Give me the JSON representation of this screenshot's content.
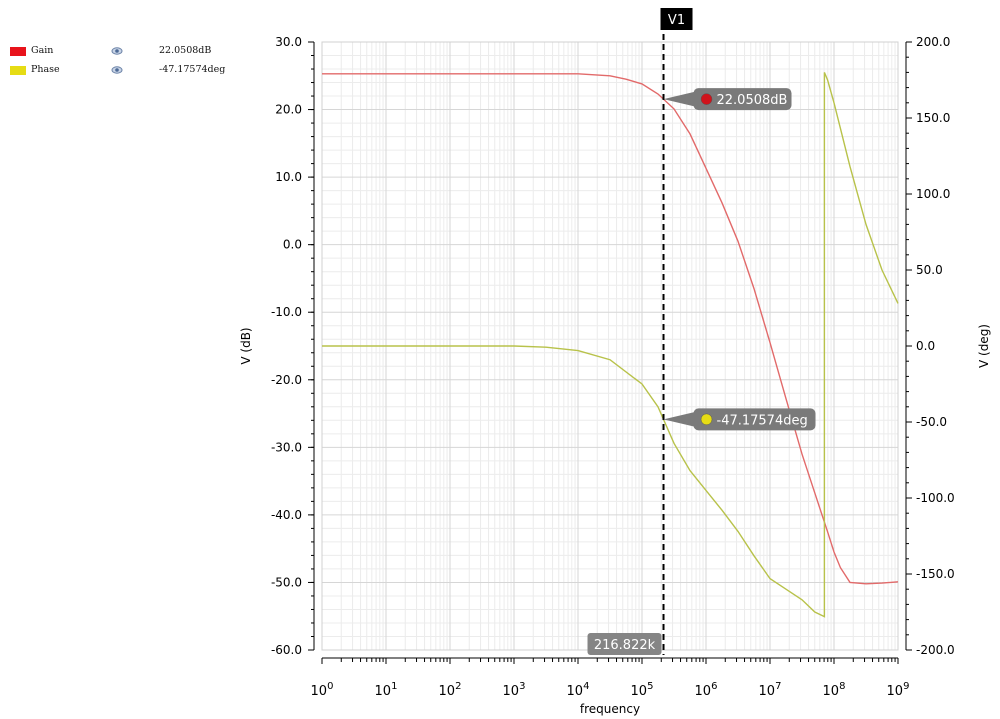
{
  "legend": [
    {
      "name": "Gain",
      "value": "22.0508dB",
      "color": "#e8131b"
    },
    {
      "name": "Phase",
      "value": "-47.17574deg",
      "color": "#e6dc14"
    }
  ],
  "chart_data": {
    "type": "line",
    "xlabel": "frequency",
    "ylabel_left": "V (dB)",
    "ylabel_right": "V (deg)",
    "x_scale": "log",
    "xlim": [
      1,
      1000000000
    ],
    "x_ticks": [
      {
        "base": "10",
        "exp": "0",
        "value": 1
      },
      {
        "base": "10",
        "exp": "1",
        "value": 10
      },
      {
        "base": "10",
        "exp": "2",
        "value": 100
      },
      {
        "base": "10",
        "exp": "3",
        "value": 1000
      },
      {
        "base": "10",
        "exp": "4",
        "value": 10000
      },
      {
        "base": "10",
        "exp": "5",
        "value": 100000
      },
      {
        "base": "10",
        "exp": "6",
        "value": 1000000
      },
      {
        "base": "10",
        "exp": "7",
        "value": 10000000
      },
      {
        "base": "10",
        "exp": "8",
        "value": 100000000
      },
      {
        "base": "10",
        "exp": "9",
        "value": 1000000000
      }
    ],
    "ylim_left": [
      -60,
      30
    ],
    "ylim_right": [
      -200,
      200
    ],
    "y_ticks_left": [
      "30.0",
      "20.0",
      "10.0",
      "0.0",
      "-10.0",
      "-20.0",
      "-30.0",
      "-40.0",
      "-50.0",
      "-60.0"
    ],
    "y_ticks_right": [
      "200.0",
      "150.0",
      "100.0",
      "50.0",
      "0.0",
      "-50.0",
      "-100.0",
      "-150.0",
      "-200.0"
    ],
    "grid": true,
    "series": [
      {
        "name": "Gain",
        "axis": "left",
        "color": "#e26a6a",
        "x": [
          1,
          10,
          100,
          1000,
          10000,
          31623,
          56234,
          100000,
          177828,
          316228,
          562341,
          1000000,
          1778279,
          3162278,
          5623413,
          10000000,
          17782794,
          31622777,
          56234133,
          79432823,
          100000000,
          125892541,
          177827941,
          316227766,
          562341325,
          1000000000
        ],
        "values": [
          25.3,
          25.3,
          25.3,
          25.3,
          25.3,
          25.0,
          24.5,
          23.8,
          22.3,
          20.1,
          16.4,
          11.3,
          6.2,
          0.5,
          -6.5,
          -14.5,
          -22.8,
          -31.0,
          -38.2,
          -42.5,
          -45.5,
          -47.8,
          -50.0,
          -50.2,
          -50.1,
          -49.9
        ]
      },
      {
        "name": "Phase",
        "axis": "right",
        "color": "#b8c24a",
        "x": [
          1,
          10,
          100,
          1000,
          3162,
          10000,
          31623,
          100000,
          177828,
          316228,
          562341,
          1000000,
          1778279,
          3162278,
          5623413,
          10000000,
          17782794,
          31622777,
          50118723,
          70794578,
          70794578,
          79432823,
          100000000,
          177827941,
          316227766,
          562341325,
          1000000000
        ],
        "values": [
          0,
          0,
          0,
          0,
          -0.8,
          -3,
          -9,
          -25,
          -40,
          -64,
          -82,
          -95,
          -108,
          -122,
          -138,
          -153,
          -160,
          -167,
          -175,
          -178,
          180,
          175,
          160,
          118,
          80,
          50,
          28
        ]
      }
    ],
    "cursor": {
      "label": "V1",
      "x_value": 216822,
      "x_label": "216.822k"
    },
    "markers": [
      {
        "series": "Gain",
        "label": "22.0508dB",
        "color": "#d0131b"
      },
      {
        "series": "Phase",
        "label": "-47.17574deg",
        "color": "#e6dc14"
      }
    ]
  }
}
